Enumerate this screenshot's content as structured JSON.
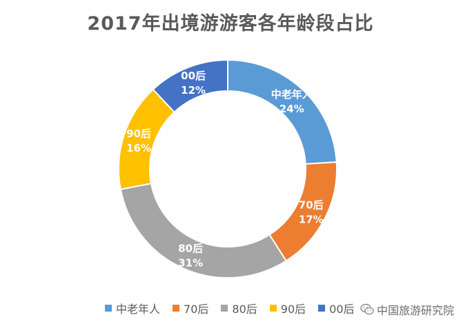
{
  "chart_data": {
    "type": "pie",
    "variant": "donut",
    "title": "2017年出境游游客各年龄段占比",
    "categories": [
      "中老年人",
      "70后",
      "80后",
      "90后",
      "00后"
    ],
    "values": [
      24,
      17,
      31,
      16,
      12
    ],
    "value_labels": [
      "24%",
      "17%",
      "31%",
      "16%",
      "12%"
    ],
    "colors": [
      "#5b9bd5",
      "#ed7d31",
      "#a5a5a5",
      "#ffc000",
      "#4472c4"
    ],
    "legend_position": "bottom",
    "legend_labels": [
      "中老年人",
      "70后",
      "80后",
      "90后",
      "00后"
    ]
  },
  "watermark": {
    "text": "中国旅游研究院",
    "icon": "wechat-icon"
  }
}
